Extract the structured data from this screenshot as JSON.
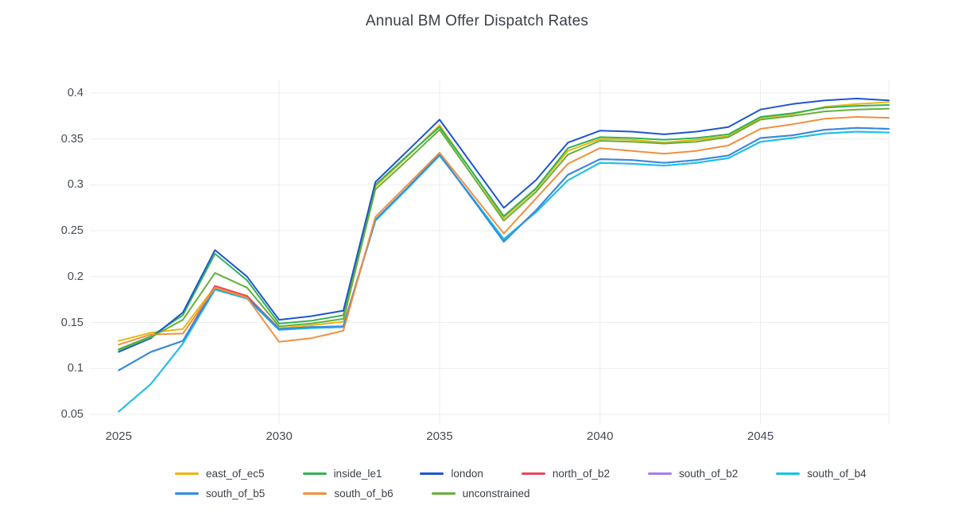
{
  "title": "Annual BM Offer Dispatch Rates",
  "colors": {
    "background": "#ffffff",
    "grid": "#ebedf0",
    "title_text": "#3a4049",
    "tick_text": "#444b54"
  },
  "chart_data": {
    "type": "line",
    "title": "Annual BM Offer Dispatch Rates",
    "xlabel": "",
    "ylabel": "",
    "grid": true,
    "legend_position": "bottom",
    "xlim": [
      2024.1,
      2049
    ],
    "ylim": [
      0.0396,
      0.4147
    ],
    "x": [
      2025,
      2026,
      2027,
      2028,
      2029,
      2030,
      2031,
      2032,
      2033,
      2034,
      2035,
      2036,
      2037,
      2038,
      2039,
      2040,
      2041,
      2042,
      2043,
      2044,
      2045,
      2046,
      2047,
      2048,
      2049
    ],
    "x_ticks": [
      {
        "value": 2025,
        "label": "2025"
      },
      {
        "value": 2030,
        "label": "2030"
      },
      {
        "value": 2035,
        "label": "2035"
      },
      {
        "value": 2040,
        "label": "2040"
      },
      {
        "value": 2045,
        "label": "2045"
      }
    ],
    "y_ticks": [
      {
        "value": 0.05,
        "label": "0.05"
      },
      {
        "value": 0.1,
        "label": "0.1"
      },
      {
        "value": 0.15,
        "label": "0.15"
      },
      {
        "value": 0.2,
        "label": "0.2"
      },
      {
        "value": 0.25,
        "label": "0.25"
      },
      {
        "value": 0.3,
        "label": "0.3"
      },
      {
        "value": 0.35,
        "label": "0.35"
      },
      {
        "value": 0.4,
        "label": "0.4"
      }
    ],
    "series": [
      {
        "name": "east_of_ec5",
        "color": "#eab60e",
        "values": [
          0.13,
          0.139,
          0.143,
          0.189,
          0.178,
          0.144,
          0.147,
          0.151,
          0.298,
          0.331,
          0.365,
          0.315,
          0.264,
          0.295,
          0.337,
          0.35,
          0.349,
          0.346,
          0.349,
          0.353,
          0.373,
          0.377,
          0.385,
          0.388,
          0.39
        ]
      },
      {
        "name": "inside_le1",
        "color": "#31b257",
        "values": [
          0.121,
          0.135,
          0.158,
          0.225,
          0.196,
          0.149,
          0.152,
          0.158,
          0.3,
          0.332,
          0.363,
          0.315,
          0.266,
          0.296,
          0.34,
          0.352,
          0.351,
          0.349,
          0.351,
          0.355,
          0.374,
          0.378,
          0.384,
          0.386,
          0.387
        ]
      },
      {
        "name": "london",
        "color": "#1f55d0",
        "values": [
          0.118,
          0.133,
          0.161,
          0.229,
          0.2,
          0.153,
          0.157,
          0.163,
          0.303,
          0.337,
          0.371,
          0.323,
          0.275,
          0.305,
          0.346,
          0.359,
          0.358,
          0.355,
          0.358,
          0.363,
          0.382,
          0.388,
          0.392,
          0.394,
          0.392
        ]
      },
      {
        "name": "north_of_b2",
        "color": "#e8485e",
        "values": [
          0.098,
          0.118,
          0.13,
          0.19,
          0.179,
          0.143,
          0.145,
          0.146,
          0.262,
          0.297,
          0.333,
          0.286,
          0.239,
          0.272,
          0.311,
          0.328,
          0.327,
          0.324,
          0.327,
          0.332,
          0.351,
          0.354,
          0.36,
          0.362,
          0.361
        ]
      },
      {
        "name": "south_of_b2",
        "color": "#a97ef0",
        "values": [
          0.053,
          0.083,
          0.127,
          0.186,
          0.176,
          0.142,
          0.144,
          0.145,
          0.261,
          0.296,
          0.332,
          0.287,
          0.241,
          0.27,
          0.305,
          0.324,
          0.323,
          0.321,
          0.324,
          0.329,
          0.347,
          0.351,
          0.356,
          0.358,
          0.357
        ]
      },
      {
        "name": "south_of_b4",
        "color": "#17c3e6",
        "values": [
          0.053,
          0.083,
          0.127,
          0.186,
          0.176,
          0.142,
          0.144,
          0.145,
          0.261,
          0.296,
          0.332,
          0.287,
          0.241,
          0.27,
          0.305,
          0.324,
          0.323,
          0.321,
          0.324,
          0.329,
          0.347,
          0.351,
          0.356,
          0.358,
          0.357
        ]
      },
      {
        "name": "south_of_b5",
        "color": "#2f8de4",
        "values": [
          0.098,
          0.118,
          0.13,
          0.187,
          0.177,
          0.143,
          0.145,
          0.146,
          0.262,
          0.297,
          0.333,
          0.286,
          0.238,
          0.272,
          0.311,
          0.328,
          0.327,
          0.324,
          0.327,
          0.332,
          0.351,
          0.354,
          0.36,
          0.362,
          0.361
        ]
      },
      {
        "name": "south_of_b6",
        "color": "#f0903e",
        "values": [
          0.126,
          0.137,
          0.138,
          0.188,
          0.177,
          0.129,
          0.133,
          0.141,
          0.265,
          0.3,
          0.335,
          0.291,
          0.247,
          0.285,
          0.323,
          0.34,
          0.337,
          0.334,
          0.337,
          0.343,
          0.361,
          0.366,
          0.372,
          0.374,
          0.373
        ]
      },
      {
        "name": "unconstrained",
        "color": "#66b03a",
        "values": [
          0.12,
          0.134,
          0.153,
          0.204,
          0.188,
          0.146,
          0.149,
          0.154,
          0.295,
          0.327,
          0.36,
          0.311,
          0.261,
          0.292,
          0.333,
          0.348,
          0.347,
          0.345,
          0.347,
          0.352,
          0.371,
          0.375,
          0.38,
          0.382,
          0.383
        ]
      }
    ]
  }
}
